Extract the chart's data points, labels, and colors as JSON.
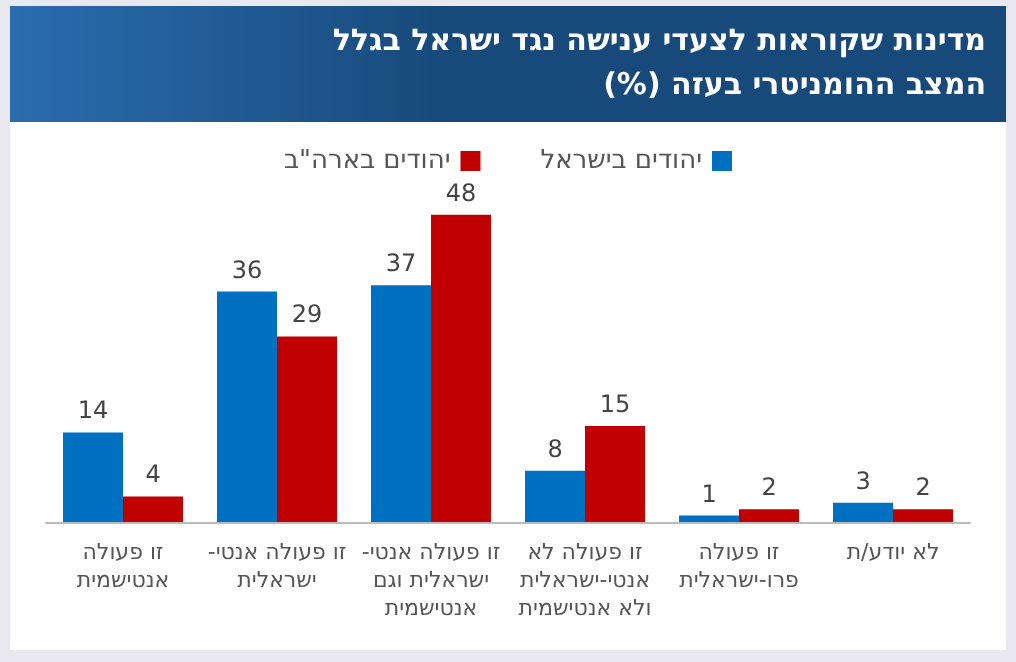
{
  "chart_data": {
    "type": "bar",
    "title": "מדינות שקוראות לצעדי ענישה נגד ישראל בגלל המצב ההומניטרי בעזה (%)",
    "categories": [
      "זו פעולה\nאנטישמית",
      "זו פעולה אנטי-\nישראלית",
      "זו פעולה אנטי-\nישראלית וגם\nאנטישמית",
      "זו פעולה לא\nאנטי-ישראלית\nולא אנטישמית",
      "זו פעולה\nפרו-ישראלית",
      "לא יודע/ת"
    ],
    "series": [
      {
        "name": "יהודים בישראל",
        "color": "#0070c0",
        "values": [
          14,
          36,
          37,
          8,
          1,
          3
        ]
      },
      {
        "name": "יהודים בארה\"ב",
        "color": "#c00000",
        "values": [
          4,
          29,
          48,
          15,
          2,
          2
        ]
      }
    ],
    "data_labels": true,
    "legend": "top"
  }
}
